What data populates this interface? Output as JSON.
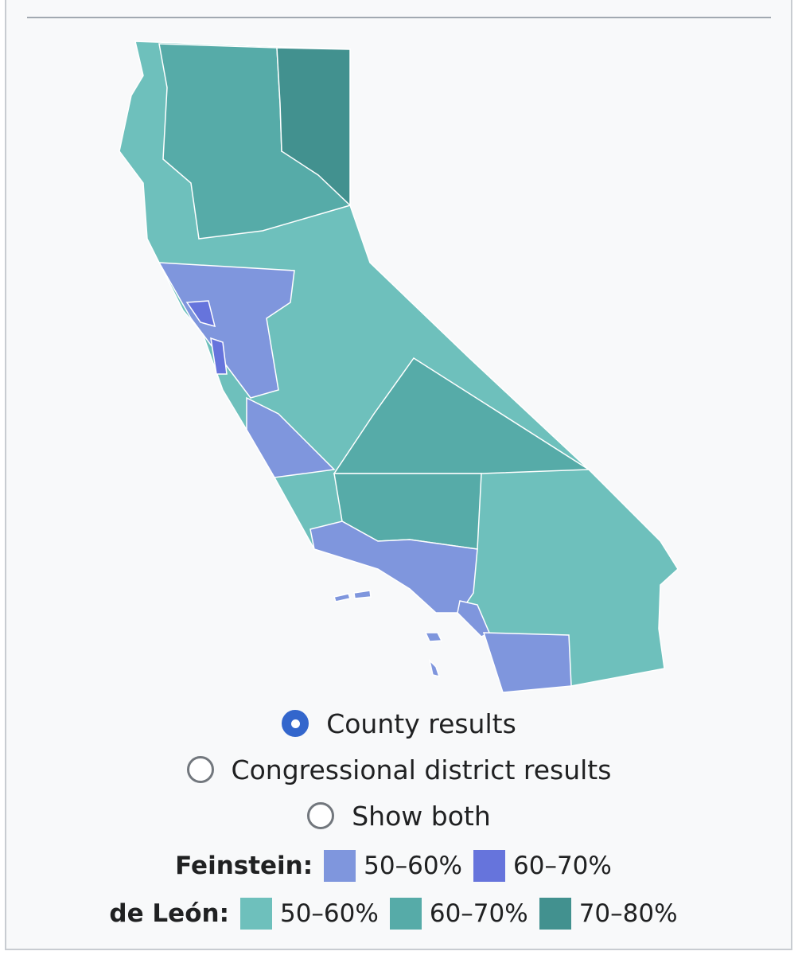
{
  "map": {
    "options": [
      {
        "label": "County results",
        "selected": true
      },
      {
        "label": "Congressional district results",
        "selected": false
      },
      {
        "label": "Show both",
        "selected": false
      }
    ],
    "legend": [
      {
        "candidate": "Feinstein:",
        "items": [
          {
            "label": "50–60%",
            "color": "#7f96dd"
          },
          {
            "label": "60–70%",
            "color": "#6674dc"
          }
        ]
      },
      {
        "candidate": "de León:",
        "items": [
          {
            "label": "50–60%",
            "color": "#6ec0bc"
          },
          {
            "label": "60–70%",
            "color": "#56aba8"
          },
          {
            "label": "70–80%",
            "color": "#42918f"
          }
        ]
      }
    ]
  }
}
